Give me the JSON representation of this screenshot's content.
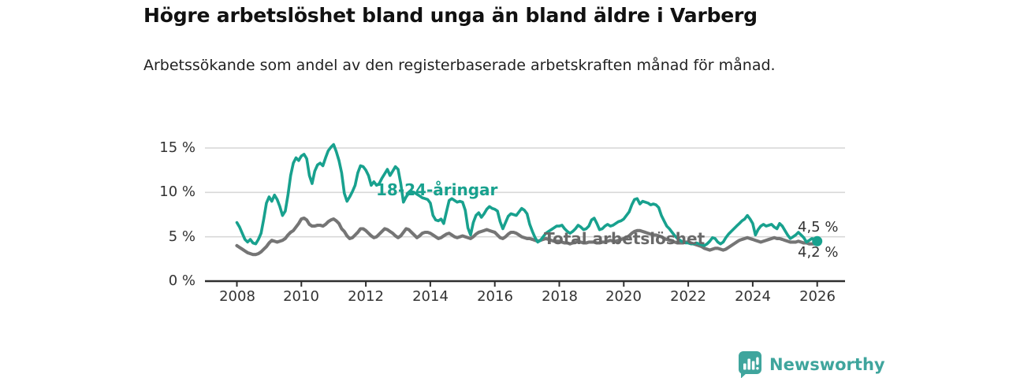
{
  "chart_data": {
    "type": "line",
    "title": "Högre arbetslöshet bland unga än bland äldre i Varberg",
    "subtitle": "Arbetssökande som andel av den registerbaserade arbetskraften månad för månad.",
    "x_start": "2008-01",
    "x_end": "2026-01",
    "frequency": "monthly",
    "x_ticks": [
      2008,
      2010,
      2012,
      2014,
      2016,
      2018,
      2020,
      2022,
      2024,
      2026
    ],
    "y_ticks": [
      {
        "value": 0,
        "label": "0 %"
      },
      {
        "value": 5,
        "label": "5 %"
      },
      {
        "value": 10,
        "label": "10 %"
      },
      {
        "value": 15,
        "label": "15 %"
      }
    ],
    "ylim": [
      0,
      16.6
    ],
    "grid": "horizontal",
    "legend": "inline-labels",
    "colors": {
      "youth": "#18a18e",
      "total": "#757575",
      "axis": "#2f2f2f",
      "gridline": "#d8d8d8"
    },
    "series": [
      {
        "name": "18-24-åringar",
        "color": "#18a18e",
        "end_marker": true,
        "values": [
          6.6,
          6.1,
          5.4,
          4.7,
          4.4,
          4.7,
          4.3,
          4.2,
          4.7,
          5.4,
          7.0,
          8.8,
          9.5,
          9.0,
          9.7,
          9.2,
          8.4,
          7.4,
          7.9,
          9.7,
          11.9,
          13.3,
          13.9,
          13.6,
          14.1,
          14.3,
          13.8,
          11.9,
          11.0,
          12.4,
          13.1,
          13.3,
          13.0,
          13.9,
          14.7,
          15.1,
          15.4,
          14.6,
          13.6,
          12.2,
          9.9,
          9.0,
          9.5,
          10.1,
          10.8,
          12.2,
          13.0,
          12.9,
          12.5,
          11.9,
          10.8,
          11.2,
          10.8,
          11.0,
          11.6,
          12.1,
          12.6,
          11.9,
          12.4,
          12.9,
          12.6,
          11.0,
          8.9,
          9.5,
          9.9,
          10.1,
          10.0,
          9.8,
          9.6,
          9.4,
          9.3,
          9.2,
          8.8,
          7.4,
          6.9,
          6.8,
          7.0,
          6.5,
          7.8,
          9.1,
          9.3,
          9.1,
          8.9,
          9.0,
          8.9,
          8.0,
          6.0,
          5.2,
          6.6,
          7.4,
          7.7,
          7.2,
          7.6,
          8.1,
          8.4,
          8.2,
          8.1,
          7.9,
          6.7,
          5.9,
          6.6,
          7.3,
          7.6,
          7.5,
          7.4,
          7.8,
          8.2,
          8.0,
          7.6,
          6.4,
          5.6,
          4.9,
          4.4,
          4.6,
          5.0,
          5.4,
          5.6,
          5.8,
          6.0,
          6.2,
          6.2,
          6.3,
          5.9,
          5.6,
          5.4,
          5.6,
          5.9,
          6.3,
          6.1,
          5.8,
          5.9,
          6.2,
          6.9,
          7.1,
          6.5,
          5.8,
          5.9,
          6.2,
          6.4,
          6.2,
          6.3,
          6.5,
          6.7,
          6.8,
          7.0,
          7.4,
          7.8,
          8.6,
          9.2,
          9.3,
          8.7,
          9.0,
          8.9,
          8.8,
          8.6,
          8.7,
          8.6,
          8.3,
          7.4,
          6.8,
          6.2,
          5.9,
          5.5,
          5.1,
          4.8,
          4.6,
          4.4,
          4.3,
          4.3,
          4.2,
          4.2,
          4.3,
          4.2,
          4.1,
          4.0,
          4.2,
          4.5,
          4.9,
          4.8,
          4.4,
          4.2,
          4.4,
          4.9,
          5.3,
          5.6,
          5.9,
          6.2,
          6.5,
          6.8,
          7.0,
          7.4,
          7.0,
          6.5,
          5.2,
          5.8,
          6.2,
          6.4,
          6.2,
          6.3,
          6.4,
          6.1,
          5.9,
          6.5,
          6.2,
          5.7,
          5.2,
          4.8,
          5.0,
          5.2,
          5.5,
          5.2,
          4.9,
          4.4,
          4.6,
          4.8,
          4.7,
          4.5
        ]
      },
      {
        "name": "Total arbetslöshet",
        "color": "#757575",
        "end_marker": false,
        "values": [
          4.0,
          3.8,
          3.6,
          3.4,
          3.2,
          3.1,
          3.0,
          3.0,
          3.1,
          3.3,
          3.6,
          3.9,
          4.3,
          4.6,
          4.5,
          4.4,
          4.5,
          4.6,
          4.8,
          5.2,
          5.5,
          5.7,
          6.1,
          6.5,
          7.0,
          7.1,
          6.9,
          6.4,
          6.2,
          6.2,
          6.3,
          6.3,
          6.2,
          6.4,
          6.7,
          6.9,
          7.0,
          6.8,
          6.5,
          5.9,
          5.6,
          5.1,
          4.8,
          4.9,
          5.2,
          5.5,
          5.9,
          5.9,
          5.7,
          5.4,
          5.1,
          4.9,
          5.0,
          5.3,
          5.6,
          5.9,
          5.8,
          5.6,
          5.4,
          5.1,
          4.9,
          5.1,
          5.5,
          5.9,
          5.8,
          5.5,
          5.2,
          4.9,
          5.1,
          5.4,
          5.5,
          5.5,
          5.4,
          5.2,
          5.0,
          4.8,
          4.9,
          5.1,
          5.3,
          5.4,
          5.2,
          5.0,
          4.9,
          5.0,
          5.1,
          5.0,
          4.9,
          4.8,
          5.0,
          5.3,
          5.5,
          5.6,
          5.7,
          5.8,
          5.7,
          5.6,
          5.5,
          5.2,
          4.9,
          4.8,
          5.0,
          5.3,
          5.5,
          5.5,
          5.4,
          5.2,
          5.0,
          4.9,
          4.8,
          4.8,
          4.7,
          4.6,
          4.5,
          4.6,
          4.7,
          4.8,
          4.7,
          4.6,
          4.5,
          4.5,
          4.5,
          4.4,
          4.3,
          4.3,
          4.2,
          4.3,
          4.4,
          4.5,
          4.4,
          4.3,
          4.3,
          4.4,
          4.4,
          4.4,
          4.3,
          4.3,
          4.4,
          4.4,
          4.5,
          4.6,
          4.5,
          4.5,
          4.6,
          4.7,
          4.8,
          4.9,
          5.1,
          5.4,
          5.6,
          5.7,
          5.7,
          5.6,
          5.5,
          5.4,
          5.3,
          5.2,
          5.2,
          5.1,
          5.0,
          4.8,
          4.7,
          4.6,
          4.5,
          4.4,
          4.3,
          4.3,
          4.3,
          4.4,
          4.4,
          4.3,
          4.2,
          4.1,
          4.0,
          3.9,
          3.7,
          3.6,
          3.5,
          3.6,
          3.7,
          3.7,
          3.6,
          3.5,
          3.6,
          3.8,
          4.0,
          4.2,
          4.4,
          4.6,
          4.7,
          4.8,
          4.9,
          4.8,
          4.7,
          4.6,
          4.5,
          4.4,
          4.5,
          4.6,
          4.7,
          4.8,
          4.9,
          4.8,
          4.8,
          4.7,
          4.6,
          4.5,
          4.4,
          4.4,
          4.4,
          4.5,
          4.4,
          4.3,
          4.3,
          4.2,
          4.2,
          4.2,
          4.2
        ]
      }
    ],
    "end_labels": [
      {
        "series": "18-24-åringar",
        "text": "4,5 %"
      },
      {
        "series": "Total arbetslöshet",
        "text": "4,2 %"
      }
    ]
  },
  "footer": {
    "brand": "Newsworthy",
    "logo_icon": "newsworthy-speech-bubble-bar-chart-icon",
    "brand_color": "#3fa59d"
  }
}
